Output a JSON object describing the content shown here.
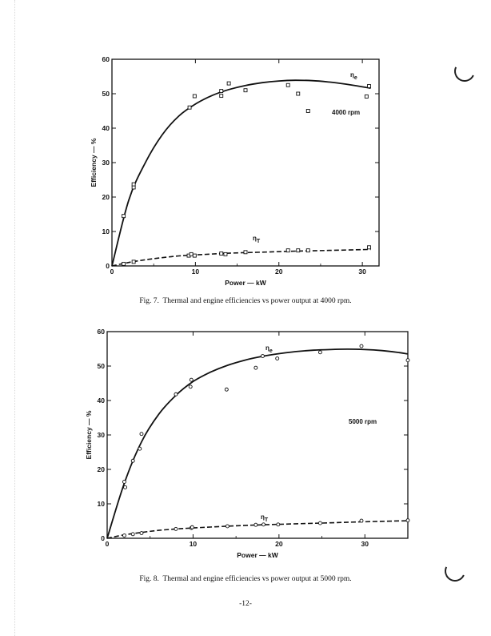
{
  "chart_data": [
    {
      "type": "scatter",
      "xlabel": "Power — kW",
      "ylabel": "Efficiency — %",
      "xlim": [
        0,
        32
      ],
      "ylim": [
        0,
        60
      ],
      "xticks": [
        0,
        10,
        20,
        30
      ],
      "yticks": [
        0,
        10,
        20,
        30,
        40,
        50,
        60
      ],
      "annotation": "4000 rpm",
      "marker": "square",
      "series": [
        {
          "name": "ηe",
          "line_style": "solid",
          "points": [
            [
              1.4,
              14.5
            ],
            [
              2.6,
              22.8
            ],
            [
              2.6,
              23.7
            ],
            [
              9.3,
              46.0
            ],
            [
              9.9,
              49.3
            ],
            [
              13.1,
              49.4
            ],
            [
              13.1,
              50.8
            ],
            [
              14.0,
              53.0
            ],
            [
              16.0,
              51.0
            ],
            [
              21.1,
              52.5
            ],
            [
              22.3,
              50.0
            ],
            [
              23.5,
              45.0
            ],
            [
              30.5,
              49.2
            ],
            [
              30.8,
              52.2
            ]
          ],
          "curve": [
            [
              0,
              0
            ],
            [
              2,
              19
            ],
            [
              4,
              30
            ],
            [
              6,
              38
            ],
            [
              8,
              43.5
            ],
            [
              10,
              47
            ],
            [
              12,
              49.5
            ],
            [
              14,
              51.2
            ],
            [
              16,
              52.4
            ],
            [
              18,
              53.2
            ],
            [
              20,
              53.7
            ],
            [
              22,
              53.9
            ],
            [
              24,
              53.8
            ],
            [
              26,
              53.4
            ],
            [
              28,
              52.8
            ],
            [
              30,
              52.0
            ],
            [
              31,
              51.6
            ]
          ]
        },
        {
          "name": "ηT",
          "line_style": "dashed",
          "points": [
            [
              1.4,
              0.6
            ],
            [
              2.6,
              1.2
            ],
            [
              9.2,
              3.0
            ],
            [
              9.5,
              3.4
            ],
            [
              9.9,
              3.0
            ],
            [
              13.1,
              3.6
            ],
            [
              13.6,
              3.4
            ],
            [
              16.0,
              4.0
            ],
            [
              21.1,
              4.5
            ],
            [
              22.3,
              4.5
            ],
            [
              23.5,
              4.5
            ],
            [
              30.8,
              5.4
            ]
          ],
          "curve": [
            [
              0,
              0
            ],
            [
              2,
              1.0
            ],
            [
              4,
              1.8
            ],
            [
              6,
              2.4
            ],
            [
              8,
              2.9
            ],
            [
              10,
              3.2
            ],
            [
              14,
              3.7
            ],
            [
              18,
              4.0
            ],
            [
              22,
              4.3
            ],
            [
              26,
              4.5
            ],
            [
              31,
              4.8
            ]
          ]
        }
      ]
    },
    {
      "type": "scatter",
      "xlabel": "Power — kW",
      "ylabel": "Efficiency — %",
      "xlim": [
        0,
        35
      ],
      "ylim": [
        0,
        60
      ],
      "xticks": [
        0,
        10,
        20,
        30
      ],
      "yticks": [
        0,
        10,
        20,
        30,
        40,
        50,
        60
      ],
      "annotation": "5000 rpm",
      "marker": "circle",
      "series": [
        {
          "name": "ηe",
          "line_style": "solid",
          "points": [
            [
              2.0,
              16.4
            ],
            [
              2.1,
              14.8
            ],
            [
              3.0,
              22.5
            ],
            [
              3.8,
              26.0
            ],
            [
              4.0,
              30.3
            ],
            [
              8.0,
              41.8
            ],
            [
              9.7,
              44.0
            ],
            [
              9.8,
              46.0
            ],
            [
              13.9,
              43.2
            ],
            [
              17.3,
              49.5
            ],
            [
              18.1,
              52.9
            ],
            [
              19.8,
              52.2
            ],
            [
              24.8,
              54.0
            ],
            [
              29.6,
              55.8
            ],
            [
              35.0,
              51.7
            ]
          ],
          "curve": [
            [
              0,
              0
            ],
            [
              2,
              16
            ],
            [
              4,
              28
            ],
            [
              6,
              36
            ],
            [
              8,
              41.5
            ],
            [
              10,
              45.5
            ],
            [
              12,
              48.2
            ],
            [
              14,
              50.2
            ],
            [
              16,
              51.7
            ],
            [
              18,
              52.8
            ],
            [
              20,
              53.6
            ],
            [
              22,
              54.2
            ],
            [
              24,
              54.6
            ],
            [
              26,
              54.8
            ],
            [
              28,
              54.9
            ],
            [
              30,
              54.8
            ],
            [
              32,
              54.5
            ],
            [
              34,
              53.9
            ],
            [
              35,
              53.5
            ]
          ]
        },
        {
          "name": "ηT",
          "line_style": "dashed",
          "points": [
            [
              2.0,
              0.8
            ],
            [
              3.0,
              1.2
            ],
            [
              4.0,
              1.5
            ],
            [
              8.0,
              2.7
            ],
            [
              9.8,
              3.0
            ],
            [
              9.9,
              3.2
            ],
            [
              14.0,
              3.5
            ],
            [
              17.3,
              3.9
            ],
            [
              18.2,
              4.0
            ],
            [
              19.9,
              4.0
            ],
            [
              24.8,
              4.4
            ],
            [
              29.6,
              5.1
            ],
            [
              35.0,
              5.2
            ]
          ],
          "curve": [
            [
              0,
              0
            ],
            [
              2,
              1.0
            ],
            [
              4,
              1.7
            ],
            [
              6,
              2.3
            ],
            [
              8,
              2.7
            ],
            [
              10,
              3.0
            ],
            [
              14,
              3.5
            ],
            [
              18,
              3.9
            ],
            [
              22,
              4.2
            ],
            [
              26,
              4.5
            ],
            [
              30,
              4.8
            ],
            [
              35,
              5.1
            ]
          ]
        }
      ]
    }
  ],
  "captions": {
    "fig7": "Fig. 7.  Thermal and engine efficiencies vs power output at 4000 rpm.",
    "fig8": "Fig. 8.  Thermal and engine efficiencies vs power output at 5000 rpm."
  },
  "page_number": "-12-"
}
